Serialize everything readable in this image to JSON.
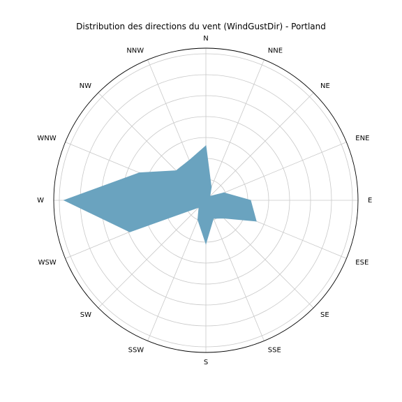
{
  "chart_data": {
    "type": "radar",
    "title": "Distribution des directions du vent (WindGustDir) - Portland",
    "directions": [
      "N",
      "NNE",
      "NE",
      "ENE",
      "E",
      "ESE",
      "SE",
      "SSE",
      "S",
      "SSW",
      "SW",
      "WSW",
      "W",
      "WNW",
      "NW",
      "NNW"
    ],
    "values": [
      78,
      20,
      8,
      28,
      64,
      78,
      36,
      28,
      62,
      30,
      14,
      118,
      203,
      103,
      60,
      62
    ],
    "rlim": [
      0,
      218
    ],
    "rings": [
      30,
      60,
      90,
      120,
      150,
      180,
      210
    ],
    "radial_tick_labels_shown": false,
    "grid": true,
    "colors": {
      "fill": "#6aa3bf",
      "grid": "#c8c8c8",
      "frame": "#000000"
    }
  }
}
